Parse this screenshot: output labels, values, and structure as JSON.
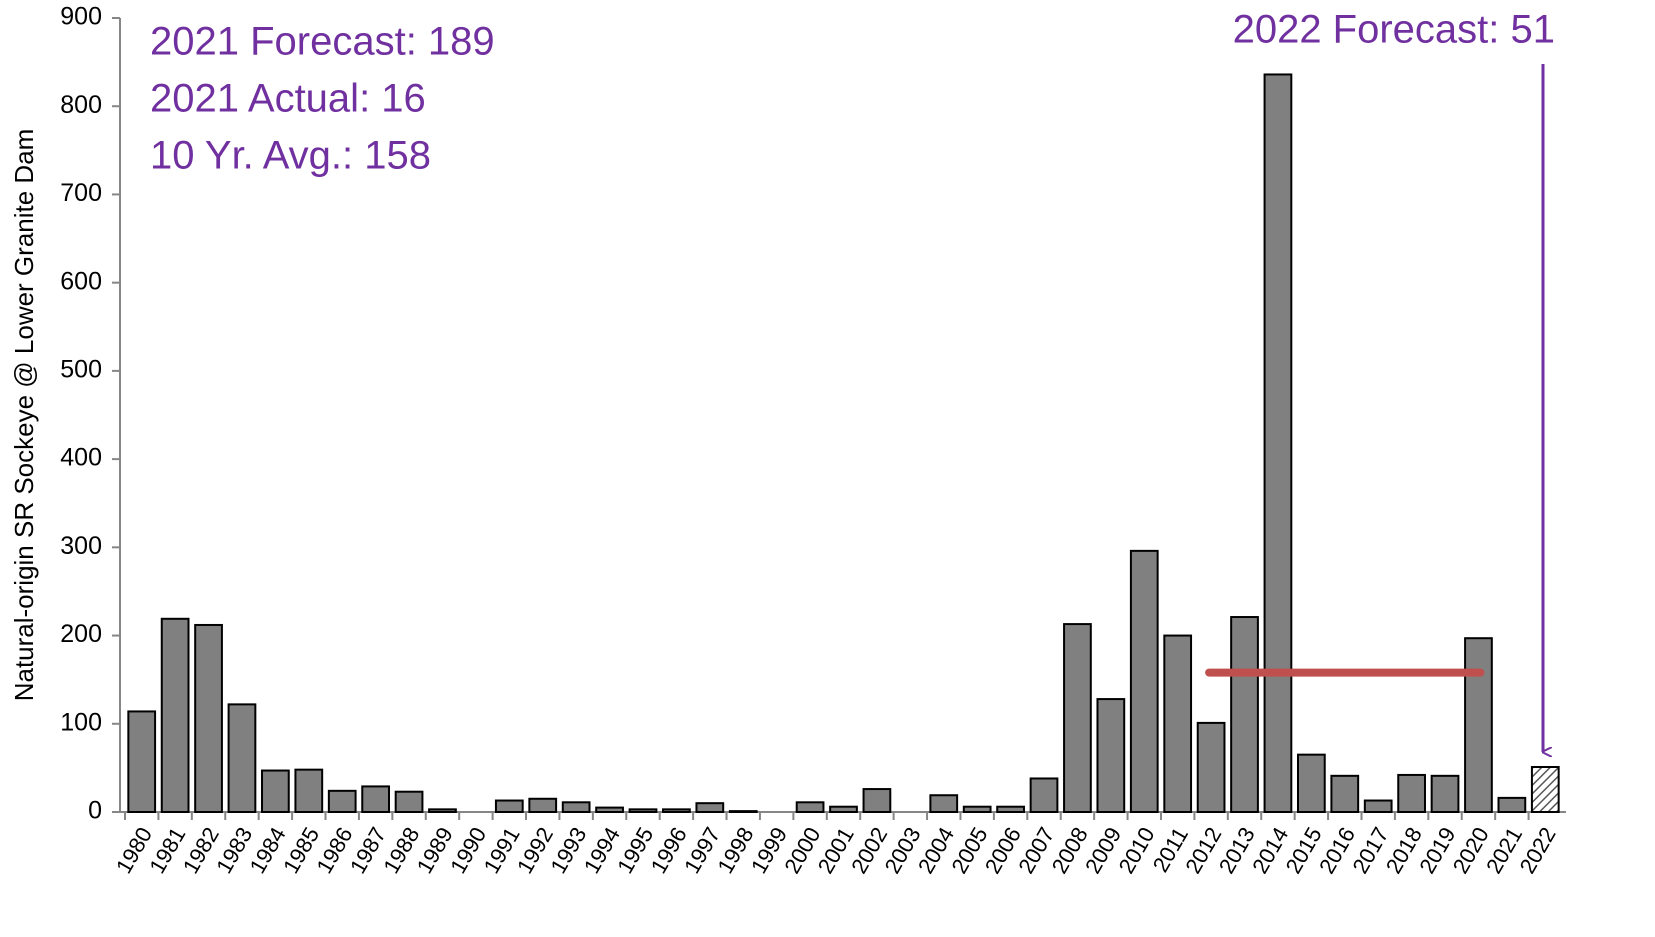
{
  "chart_data": {
    "type": "bar",
    "y_label": "Natural-origin SR Sockeye @ Lower Granite Dam",
    "categories": [
      "1980",
      "1981",
      "1982",
      "1983",
      "1984",
      "1985",
      "1986",
      "1987",
      "1988",
      "1989",
      "1990",
      "1991",
      "1992",
      "1993",
      "1994",
      "1995",
      "1996",
      "1997",
      "1998",
      "1999",
      "2000",
      "2001",
      "2002",
      "2003",
      "2004",
      "2005",
      "2006",
      "2007",
      "2008",
      "2009",
      "2010",
      "2011",
      "2012",
      "2013",
      "2014",
      "2015",
      "2016",
      "2017",
      "2018",
      "2019",
      "2020",
      "2021",
      "2022"
    ],
    "values": [
      114,
      219,
      212,
      122,
      47,
      48,
      24,
      29,
      23,
      3,
      0,
      13,
      15,
      11,
      5,
      3,
      3,
      10,
      1,
      0,
      11,
      6,
      26,
      0,
      19,
      6,
      6,
      38,
      213,
      128,
      296,
      200,
      101,
      221,
      836,
      65,
      41,
      13,
      42,
      41,
      197,
      16,
      51
    ],
    "color": "#808080",
    "hatched_categories": [
      "2022"
    ],
    "ylim": [
      0,
      900
    ],
    "yticks": [
      0,
      100,
      200,
      300,
      400,
      500,
      600,
      700,
      800,
      900
    ],
    "average_line": {
      "value": 158,
      "from": "2012",
      "to": "2020",
      "color": "#c0504d"
    },
    "annotations": [
      "2021 Forecast: 189",
      "2021 Actual: 16",
      "10 Yr. Avg.: 158"
    ],
    "forecast_annotation": "2022 Forecast: 51",
    "annotation_color": "#7030a0"
  }
}
